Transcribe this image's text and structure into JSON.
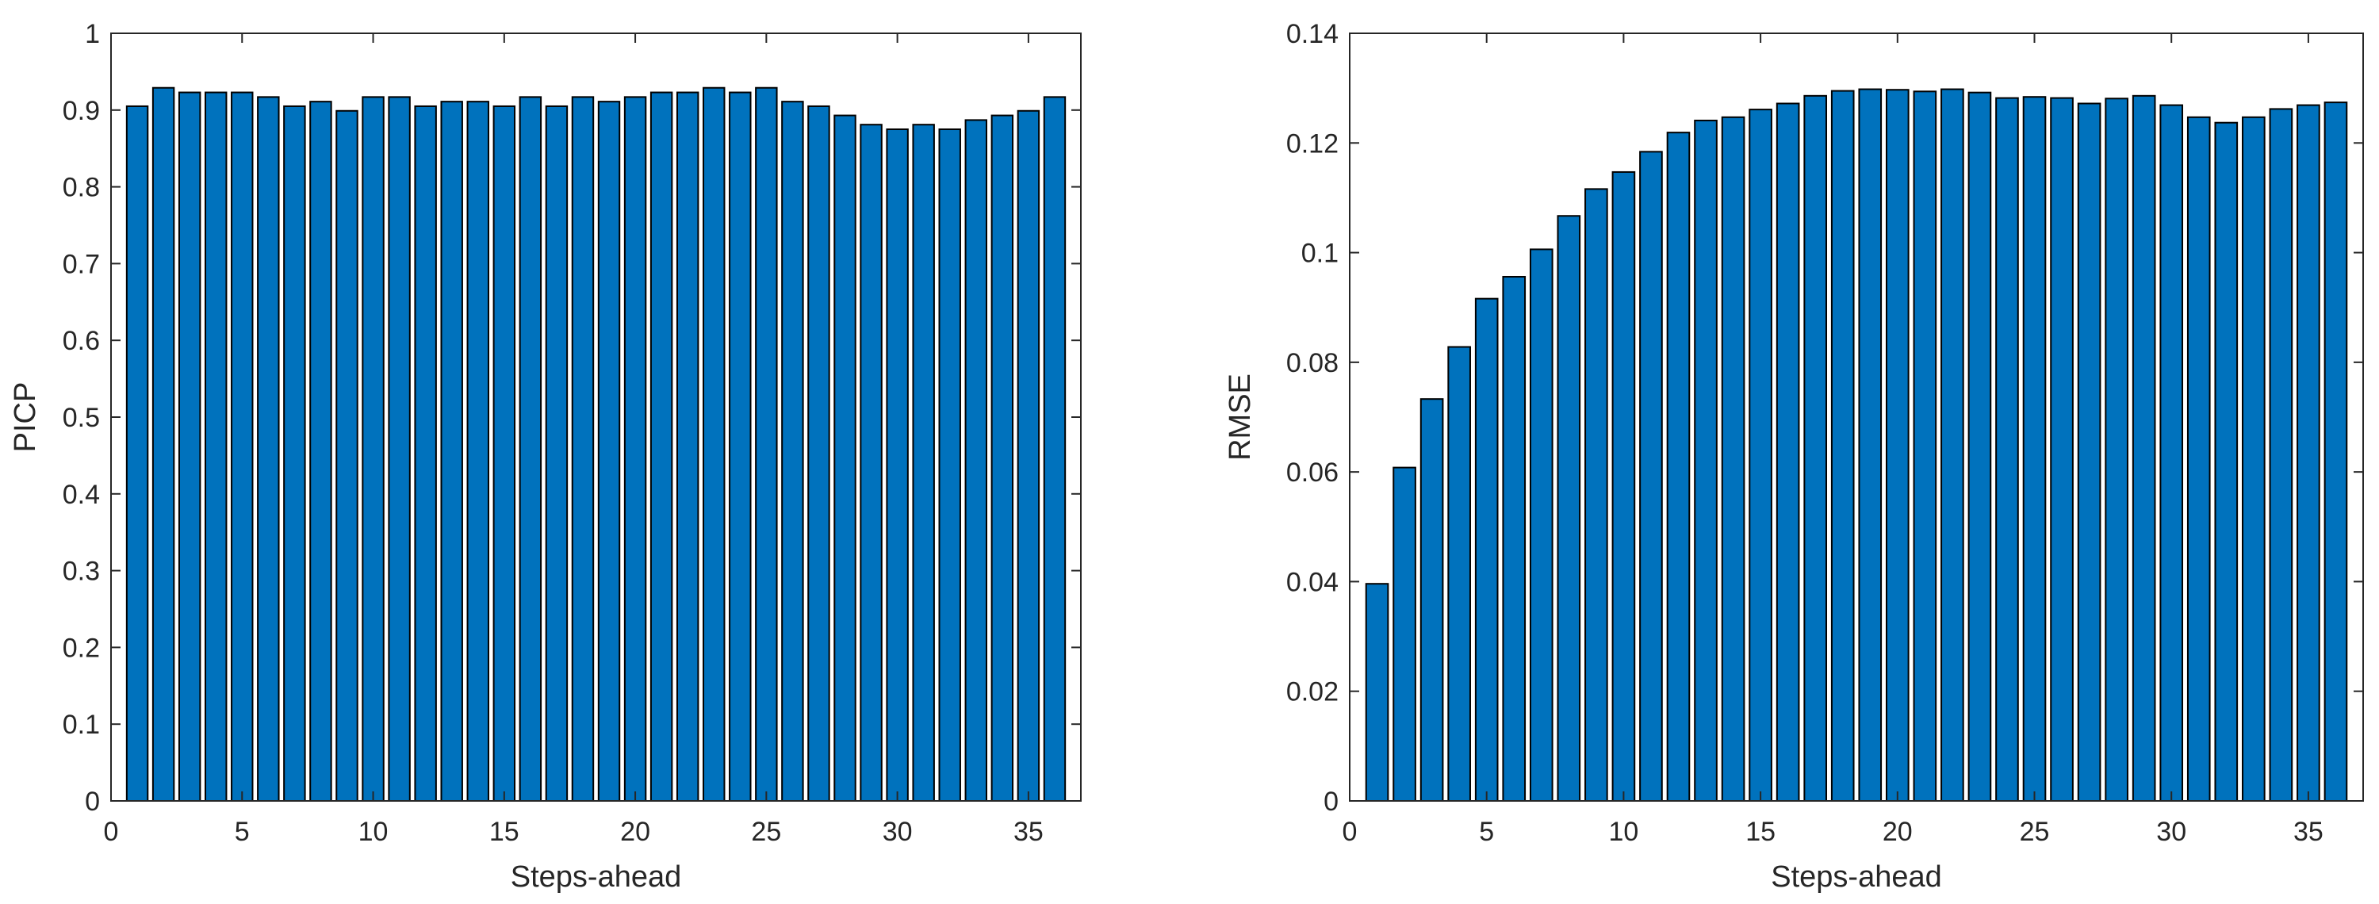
{
  "chart_data": [
    {
      "type": "bar",
      "xlabel": "Steps-ahead",
      "ylabel": "PICP",
      "ylim": [
        0,
        1
      ],
      "yticks": [
        0,
        0.1,
        0.2,
        0.3,
        0.4,
        0.5,
        0.6,
        0.7,
        0.8,
        0.9,
        1
      ],
      "ytick_labels": [
        "0",
        "0.1",
        "0.2",
        "0.3",
        "0.4",
        "0.5",
        "0.6",
        "0.7",
        "0.8",
        "0.9",
        "1"
      ],
      "xlim": [
        0,
        37
      ],
      "xticks": [
        0,
        5,
        10,
        15,
        20,
        25,
        30,
        35
      ],
      "xtick_labels": [
        "0",
        "5",
        "10",
        "15",
        "20",
        "25",
        "30",
        "35"
      ],
      "bar_color": "#0072BD",
      "grid": false,
      "x": [
        1,
        2,
        3,
        4,
        5,
        6,
        7,
        8,
        9,
        10,
        11,
        12,
        13,
        14,
        15,
        16,
        17,
        18,
        19,
        20,
        21,
        22,
        23,
        24,
        25,
        26,
        27,
        28,
        29,
        30,
        31,
        32,
        33,
        34,
        35,
        36
      ],
      "values": [
        0.905,
        0.929,
        0.923,
        0.923,
        0.923,
        0.917,
        0.905,
        0.911,
        0.899,
        0.917,
        0.917,
        0.905,
        0.911,
        0.911,
        0.905,
        0.917,
        0.905,
        0.917,
        0.911,
        0.917,
        0.923,
        0.923,
        0.929,
        0.923,
        0.929,
        0.911,
        0.905,
        0.893,
        0.881,
        0.875,
        0.881,
        0.875,
        0.887,
        0.893,
        0.899,
        0.917
      ]
    },
    {
      "type": "bar",
      "xlabel": "Steps-ahead",
      "ylabel": "RMSE",
      "ylim": [
        0,
        0.14
      ],
      "yticks": [
        0,
        0.02,
        0.04,
        0.06,
        0.08,
        0.1,
        0.12,
        0.14
      ],
      "ytick_labels": [
        "0",
        "0.02",
        "0.04",
        "0.06",
        "0.08",
        "0.1",
        "0.12",
        "0.14"
      ],
      "xlim": [
        0,
        37
      ],
      "xticks": [
        0,
        5,
        10,
        15,
        20,
        25,
        30,
        35
      ],
      "xtick_labels": [
        "0",
        "5",
        "10",
        "15",
        "20",
        "25",
        "30",
        "35"
      ],
      "bar_color": "#0072BD",
      "grid": false,
      "x": [
        1,
        2,
        3,
        4,
        5,
        6,
        7,
        8,
        9,
        10,
        11,
        12,
        13,
        14,
        15,
        16,
        17,
        18,
        19,
        20,
        21,
        22,
        23,
        24,
        25,
        26,
        27,
        28,
        29,
        30,
        31,
        32,
        33,
        34,
        35,
        36
      ],
      "values": [
        0.0396,
        0.0608,
        0.0733,
        0.0828,
        0.0916,
        0.0956,
        0.1006,
        0.1067,
        0.1116,
        0.1147,
        0.1184,
        0.1219,
        0.1241,
        0.1247,
        0.1261,
        0.1272,
        0.1286,
        0.1295,
        0.1298,
        0.1297,
        0.1294,
        0.1298,
        0.1292,
        0.1282,
        0.1284,
        0.1282,
        0.1272,
        0.1281,
        0.1286,
        0.1269,
        0.1247,
        0.1237,
        0.1247,
        0.1262,
        0.1269,
        0.1274
      ]
    }
  ]
}
